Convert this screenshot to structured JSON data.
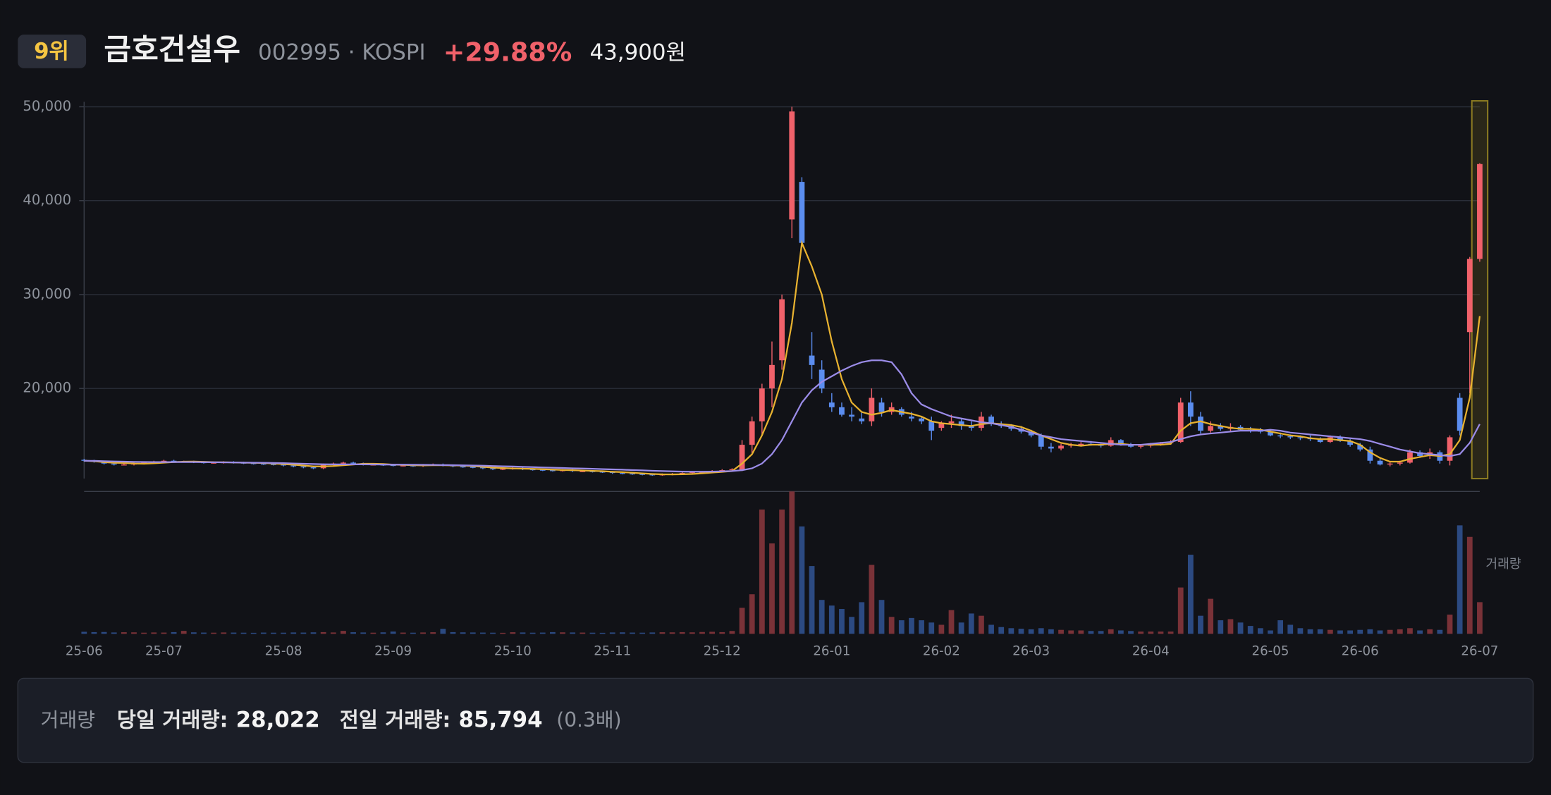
{
  "header": {
    "rank": "9위",
    "name": "금호건설우",
    "code_market": "002995 · KOSPI",
    "change": "+29.88%",
    "price": "43,900원"
  },
  "summary": {
    "label": "거래량",
    "today_label": "당일 거래량:",
    "today": "28,022",
    "prev_label": "전일 거래량:",
    "prev": "85,794",
    "ratio": "(0.3배)"
  },
  "chart_data": {
    "type": "candlestick",
    "categories": [
      "25-06",
      null,
      null,
      null,
      null,
      null,
      null,
      null,
      "25-07",
      null,
      null,
      null,
      null,
      null,
      null,
      null,
      null,
      null,
      null,
      null,
      "25-08",
      null,
      null,
      null,
      null,
      null,
      null,
      null,
      null,
      null,
      null,
      "25-09",
      null,
      null,
      null,
      null,
      null,
      null,
      null,
      null,
      null,
      null,
      null,
      "25-10",
      null,
      null,
      null,
      null,
      null,
      null,
      null,
      null,
      null,
      "25-11",
      null,
      null,
      null,
      null,
      null,
      null,
      null,
      null,
      null,
      null,
      "25-12",
      null,
      null,
      null,
      null,
      null,
      null,
      null,
      null,
      null,
      null,
      "26-01",
      null,
      null,
      null,
      null,
      null,
      null,
      null,
      null,
      null,
      null,
      "26-02",
      null,
      null,
      null,
      null,
      null,
      null,
      null,
      null,
      "26-03",
      null,
      null,
      null,
      null,
      null,
      null,
      null,
      null,
      null,
      null,
      null,
      "26-04",
      null,
      null,
      null,
      null,
      null,
      null,
      null,
      null,
      null,
      null,
      null,
      "26-05",
      null,
      null,
      null,
      null,
      null,
      null,
      null,
      null,
      "26-06",
      null,
      null,
      null,
      null,
      null,
      null,
      null,
      null,
      null,
      null,
      null,
      "26-07"
    ],
    "open": [
      12400,
      12300,
      12200,
      12000,
      11900,
      11900,
      12000,
      12100,
      12200,
      12300,
      12200,
      12200,
      12150,
      12100,
      12100,
      12150,
      12100,
      12050,
      12000,
      11950,
      11900,
      11800,
      11700,
      11600,
      11500,
      11900,
      12000,
      12100,
      12000,
      11900,
      11900,
      11850,
      11800,
      11800,
      11750,
      11850,
      11900,
      11800,
      11700,
      11650,
      11600,
      11500,
      11400,
      11450,
      11500,
      11400,
      11350,
      11300,
      11250,
      11300,
      11200,
      11200,
      11150,
      11100,
      11000,
      10950,
      10900,
      10850,
      10800,
      10850,
      10900,
      11000,
      11100,
      11100,
      11200,
      11300,
      11300,
      14000,
      16500,
      20000,
      23000,
      38000,
      42000,
      23500,
      22000,
      18500,
      18000,
      17200,
      16800,
      16500,
      18500,
      17500,
      17800,
      17000,
      16800,
      16500,
      15800,
      16300,
      16500,
      16000,
      15800,
      17000,
      16200,
      16000,
      15700,
      15400,
      15000,
      13800,
      13600,
      13900,
      14000,
      14100,
      14000,
      13900,
      14500,
      14000,
      13800,
      13900,
      14100,
      14200,
      14300,
      18500,
      17000,
      15500,
      16000,
      15700,
      15900,
      15600,
      15500,
      15400,
      15000,
      14900,
      14800,
      14700,
      14600,
      14300,
      14800,
      14400,
      14000,
      13500,
      12300,
      11900,
      12000,
      12100,
      13200,
      12800,
      13200,
      12300,
      19000,
      26000,
      33800
    ],
    "high": [
      12500,
      12400,
      12300,
      12100,
      12000,
      12100,
      12200,
      12300,
      12400,
      12400,
      12300,
      12300,
      12250,
      12200,
      12250,
      12250,
      12200,
      12150,
      12100,
      12050,
      12000,
      11900,
      11800,
      11700,
      12000,
      12100,
      12200,
      12200,
      12100,
      12000,
      12000,
      11950,
      11900,
      11900,
      11950,
      12000,
      12000,
      11900,
      11800,
      11750,
      11700,
      11600,
      11550,
      11600,
      11600,
      11500,
      11450,
      11400,
      11400,
      11400,
      11300,
      11300,
      11250,
      11200,
      11100,
      11050,
      11000,
      10950,
      10950,
      11000,
      11100,
      11200,
      11200,
      11300,
      11400,
      11500,
      14500,
      17000,
      20500,
      25000,
      30000,
      50000,
      42500,
      26000,
      23000,
      19500,
      18500,
      18000,
      17500,
      20000,
      19000,
      18500,
      18000,
      17500,
      17000,
      17000,
      16500,
      17200,
      16800,
      16500,
      17500,
      17200,
      16500,
      16200,
      16000,
      15600,
      15200,
      14200,
      14100,
      14200,
      14300,
      14400,
      14200,
      14800,
      14600,
      14200,
      14000,
      14200,
      14300,
      14500,
      19000,
      19700,
      17500,
      16500,
      16300,
      16300,
      16100,
      15900,
      15800,
      15600,
      15300,
      15100,
      15000,
      15000,
      14800,
      15000,
      15000,
      14600,
      14200,
      13800,
      12500,
      12200,
      12300,
      13500,
      13400,
      13600,
      13400,
      15000,
      19500,
      34000,
      44000
    ],
    "low": [
      12200,
      12100,
      11900,
      11800,
      11800,
      11800,
      11900,
      12000,
      12100,
      12100,
      12100,
      12050,
      12000,
      12000,
      12000,
      12000,
      11950,
      11900,
      11850,
      11800,
      11700,
      11600,
      11500,
      11400,
      11400,
      11800,
      11900,
      11900,
      11800,
      11800,
      11750,
      11700,
      11700,
      11650,
      11650,
      11750,
      11700,
      11600,
      11550,
      11500,
      11400,
      11300,
      11300,
      11350,
      11300,
      11250,
      11200,
      11150,
      11150,
      11100,
      11100,
      11050,
      11000,
      10900,
      10850,
      10800,
      10750,
      10700,
      10700,
      10750,
      10800,
      10900,
      11000,
      11000,
      11100,
      11200,
      11200,
      13000,
      15000,
      18000,
      22000,
      36000,
      35000,
      21000,
      19500,
      17500,
      17000,
      16500,
      16200,
      16000,
      17000,
      17200,
      17000,
      16500,
      16200,
      14500,
      15500,
      15800,
      15600,
      15500,
      15500,
      16000,
      15800,
      15500,
      15200,
      14800,
      13500,
      13200,
      13400,
      13700,
      13800,
      13900,
      13700,
      13800,
      13900,
      13700,
      13600,
      13700,
      13900,
      14000,
      14200,
      16000,
      15200,
      15300,
      15500,
      15400,
      15500,
      15300,
      15200,
      14900,
      14700,
      14600,
      14500,
      14400,
      14200,
      14200,
      14300,
      13800,
      13300,
      12000,
      11800,
      11700,
      11800,
      12000,
      12600,
      12500,
      12000,
      11800,
      15000,
      19500,
      33500
    ],
    "close": [
      12300,
      12200,
      12000,
      11900,
      11900,
      12000,
      12100,
      12200,
      12300,
      12200,
      12200,
      12150,
      12100,
      12100,
      12150,
      12100,
      12050,
      12000,
      11950,
      11900,
      11800,
      11700,
      11600,
      11500,
      11900,
      12000,
      12100,
      12000,
      11900,
      11900,
      11850,
      11800,
      11800,
      11750,
      11850,
      11900,
      11800,
      11700,
      11650,
      11600,
      11500,
      11400,
      11450,
      11500,
      11400,
      11350,
      11300,
      11250,
      11300,
      11200,
      11200,
      11150,
      11100,
      11000,
      10950,
      10900,
      10850,
      10800,
      10850,
      10900,
      11000,
      11100,
      11100,
      11200,
      11300,
      11400,
      14000,
      16500,
      20000,
      22500,
      29500,
      49500,
      35500,
      22500,
      20000,
      18000,
      17200,
      17000,
      16500,
      19000,
      17500,
      18000,
      17200,
      16800,
      16500,
      15500,
      16300,
      16500,
      16000,
      15800,
      17000,
      16200,
      16000,
      15700,
      15400,
      15000,
      13800,
      13600,
      13900,
      14000,
      14100,
      14000,
      13900,
      14500,
      14000,
      13800,
      13900,
      14100,
      14200,
      14300,
      18500,
      17000,
      15500,
      16000,
      15700,
      15900,
      15600,
      15500,
      15400,
      15000,
      14900,
      14800,
      14700,
      14600,
      14300,
      14800,
      14400,
      14000,
      13500,
      12300,
      11900,
      12000,
      12100,
      13200,
      12800,
      13200,
      12300,
      14800,
      15500,
      33800,
      43900
    ],
    "volume": [
      1800,
      1500,
      1600,
      1200,
      1400,
      1300,
      1000,
      1200,
      1100,
      1500,
      2600,
      1300,
      1100,
      1000,
      1200,
      1100,
      1000,
      900,
      1100,
      1000,
      1000,
      1200,
      1100,
      1300,
      1500,
      1200,
      2600,
      1400,
      1200,
      1000,
      1300,
      2000,
      1100,
      1000,
      1200,
      1400,
      4400,
      1500,
      1300,
      1200,
      1100,
      1000,
      900,
      1400,
      1200,
      1000,
      1100,
      1500,
      1300,
      1200,
      1100,
      1000,
      900,
      1200,
      1300,
      1100,
      1000,
      1200,
      1400,
      1300,
      1500,
      1300,
      1600,
      1800,
      1500,
      2500,
      23000,
      35000,
      110000,
      80000,
      110000,
      126000,
      95000,
      60000,
      30000,
      25000,
      22000,
      15000,
      28000,
      61000,
      30000,
      15000,
      12000,
      14000,
      12000,
      10000,
      8000,
      21000,
      10000,
      18000,
      16000,
      8000,
      6000,
      5000,
      4500,
      4000,
      5000,
      4000,
      3500,
      3000,
      3000,
      2500,
      2500,
      4000,
      3000,
      2500,
      2000,
      2000,
      2000,
      2000,
      41000,
      70000,
      16000,
      31000,
      12000,
      13000,
      10000,
      7000,
      5000,
      3000,
      12000,
      8000,
      5000,
      4000,
      4000,
      3500,
      3000,
      3000,
      3500,
      4000,
      3000,
      3500,
      4000,
      5000,
      3000,
      4000,
      3500,
      17000,
      96000,
      85794,
      28022
    ],
    "ma_lines": [
      {
        "color": "#e8b230",
        "values": [
          12300,
          12250,
          12150,
          12080,
          12060,
          12000,
          11980,
          12020,
          12100,
          12160,
          12200,
          12210,
          12190,
          12150,
          12140,
          12120,
          12100,
          12080,
          12050,
          12000,
          11940,
          11870,
          11790,
          11700,
          11700,
          11740,
          11820,
          11900,
          11980,
          11980,
          11950,
          11890,
          11850,
          11820,
          11800,
          11820,
          11820,
          11800,
          11780,
          11730,
          11650,
          11570,
          11520,
          11480,
          11450,
          11430,
          11400,
          11360,
          11320,
          11290,
          11250,
          11220,
          11190,
          11130,
          11080,
          11020,
          10960,
          10900,
          10850,
          10840,
          10860,
          10900,
          10960,
          11040,
          11120,
          11200,
          12000,
          13000,
          15000,
          17500,
          21000,
          27000,
          35500,
          33000,
          30000,
          25000,
          21000,
          18500,
          17500,
          17200,
          17400,
          17700,
          17500,
          17300,
          17000,
          16500,
          16300,
          16200,
          16100,
          16000,
          16200,
          16300,
          16200,
          16100,
          15900,
          15500,
          15000,
          14600,
          14200,
          14000,
          13900,
          14000,
          14000,
          14100,
          14100,
          14000,
          14000,
          14000,
          14000,
          14100,
          15500,
          16300,
          16500,
          16200,
          16000,
          15800,
          15700,
          15700,
          15600,
          15400,
          15200,
          15000,
          14900,
          14700,
          14600,
          14600,
          14500,
          14400,
          14000,
          13200,
          12600,
          12200,
          12200,
          12500,
          12700,
          12900,
          12800,
          13000,
          14500,
          19000,
          27700
        ]
      },
      {
        "color": "#9b8ce8",
        "values": [
          12300,
          12280,
          12250,
          12220,
          12200,
          12180,
          12170,
          12160,
          12160,
          12160,
          12160,
          12160,
          12150,
          12140,
          12130,
          12120,
          12110,
          12100,
          12080,
          12060,
          12040,
          12010,
          11980,
          11950,
          11930,
          11920,
          11920,
          11920,
          11920,
          11910,
          11900,
          11890,
          11880,
          11870,
          11860,
          11850,
          11840,
          11830,
          11810,
          11790,
          11770,
          11740,
          11710,
          11680,
          11650,
          11620,
          11590,
          11560,
          11530,
          11500,
          11470,
          11440,
          11410,
          11380,
          11350,
          11310,
          11270,
          11230,
          11200,
          11170,
          11150,
          11140,
          11140,
          11150,
          11170,
          11200,
          11300,
          11500,
          12000,
          13000,
          14500,
          16500,
          18500,
          19800,
          20700,
          21300,
          21900,
          22400,
          22800,
          23000,
          23000,
          22800,
          21500,
          19500,
          18300,
          17800,
          17400,
          17000,
          16800,
          16600,
          16400,
          16300,
          16100,
          15900,
          15600,
          15300,
          15000,
          14800,
          14600,
          14500,
          14400,
          14300,
          14200,
          14100,
          14000,
          14000,
          14000,
          14100,
          14200,
          14300,
          14600,
          14900,
          15100,
          15200,
          15300,
          15400,
          15500,
          15500,
          15500,
          15600,
          15500,
          15300,
          15200,
          15100,
          15000,
          14900,
          14800,
          14700,
          14600,
          14400,
          14100,
          13800,
          13500,
          13300,
          13100,
          13000,
          12900,
          12800,
          13000,
          14200,
          16200
        ]
      }
    ],
    "up_color": "#f0616a",
    "down_color": "#5b8def",
    "volume_up_color": "#7a3238",
    "volume_down_color": "#2c4a82",
    "volume_label": "거래량",
    "ylim": [
      10400,
      50000
    ],
    "yticks": [
      {
        "value": 20000,
        "label": "20,000"
      },
      {
        "value": 30000,
        "label": "30,000"
      },
      {
        "value": 40000,
        "label": "40,000"
      },
      {
        "value": 50000,
        "label": "50,000"
      }
    ],
    "volume_ylim": [
      0,
      126000
    ],
    "grid": true,
    "highlight_last": true
  }
}
